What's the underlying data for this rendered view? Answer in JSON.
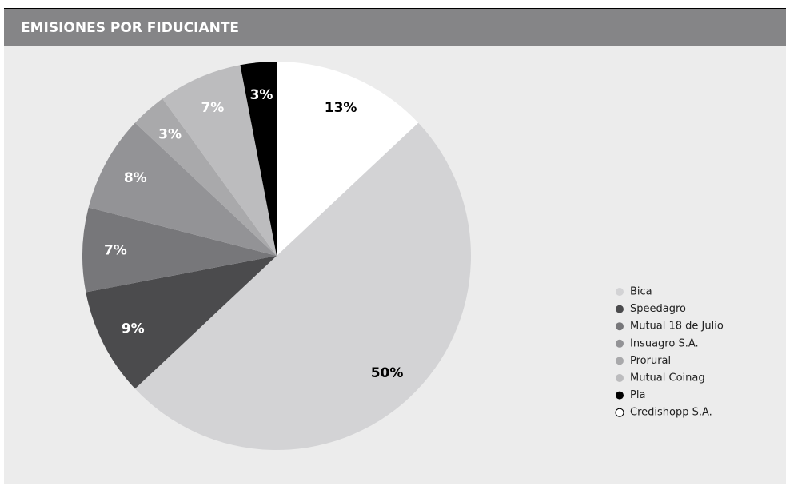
{
  "chart_data": {
    "type": "pie",
    "title": "EMISIONES POR FIDUCIANTE",
    "categories": [
      "Bica",
      "Speedagro",
      "Mutual 18 de Julio",
      "Insuagro S.A.",
      "Prorural",
      "Mutual Coinag",
      "Pla",
      "Credishopp S.A."
    ],
    "values": [
      50,
      9,
      7,
      8,
      3,
      7,
      3,
      13
    ],
    "value_labels": [
      "50%",
      "9%",
      "7%",
      "8%",
      "3%",
      "7%",
      "3%",
      "13%"
    ],
    "colors": [
      "#d3d3d5",
      "#4b4b4d",
      "#77777a",
      "#939396",
      "#a9a9ab",
      "#bcbcbe",
      "#000000",
      "#ffffff"
    ],
    "legend": "right"
  }
}
